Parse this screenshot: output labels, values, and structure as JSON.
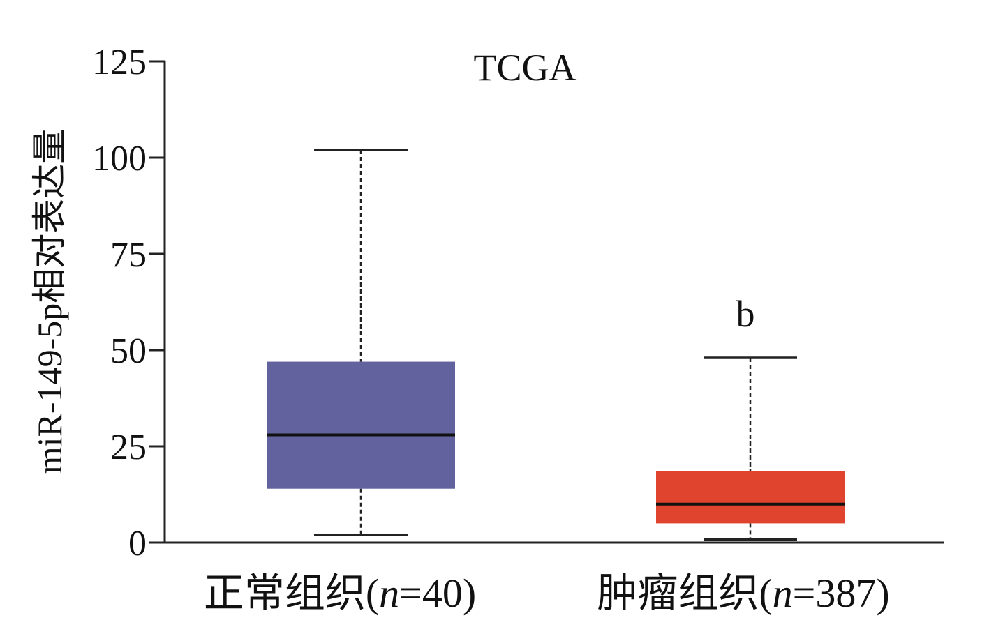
{
  "chart_data": {
    "type": "box",
    "title": "TCGA",
    "ylabel": "miR-149-5p相对表达量",
    "xlabel": "",
    "ylim": [
      0,
      125
    ],
    "yticks": [
      0,
      25,
      50,
      75,
      100,
      125
    ],
    "grid": false,
    "legend": "none",
    "categories": [
      "正常组织(n=40)",
      "肿瘤组织(n=387)"
    ],
    "category_parts": [
      {
        "prefix": "正常组织(",
        "n": "n",
        "suffix": "=40)"
      },
      {
        "prefix": "肿瘤组织(",
        "n": "n",
        "suffix": "=387)"
      }
    ],
    "boxes": [
      {
        "min": 2,
        "q1": 14,
        "median": 28,
        "q3": 47,
        "max": 102,
        "color": "#62629f",
        "annotation": ""
      },
      {
        "min": 0.8,
        "q1": 5,
        "median": 10,
        "q3": 18.5,
        "max": 48,
        "color": "#e0442f",
        "annotation": "b"
      }
    ]
  }
}
